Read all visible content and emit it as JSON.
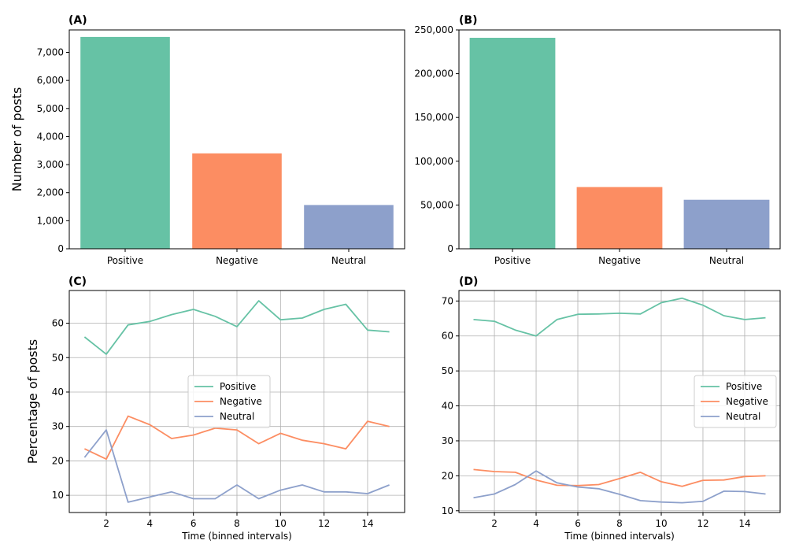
{
  "figure": {
    "ylabel_counts": "Number of posts",
    "ylabel_percent": "Percentage of posts"
  },
  "colors": {
    "Positive": "#66c2a5",
    "Negative": "#fc8d62",
    "Neutral": "#8da0cb",
    "grid": "#b0b0b0",
    "axis": "#000000"
  },
  "chart_data": [
    {
      "panel": "(A)",
      "type": "bar",
      "categories": [
        "Positive",
        "Negative",
        "Neutral"
      ],
      "values": [
        7550,
        3400,
        1560
      ],
      "ylabel": "Number of posts",
      "xlabel": "",
      "ylim": [
        0,
        7800
      ],
      "yticks": [
        0,
        1000,
        2000,
        3000,
        4000,
        5000,
        6000,
        7000
      ],
      "ytick_labels": [
        "0",
        "1,000",
        "2,000",
        "3,000",
        "4,000",
        "5,000",
        "6,000",
        "7,000"
      ],
      "grid": false
    },
    {
      "panel": "(B)",
      "type": "bar",
      "categories": [
        "Positive",
        "Negative",
        "Neutral"
      ],
      "values": [
        241000,
        70500,
        56000
      ],
      "ylabel": "",
      "xlabel": "",
      "ylim": [
        0,
        250000
      ],
      "yticks": [
        0,
        50000,
        100000,
        150000,
        200000,
        250000
      ],
      "ytick_labels": [
        "0",
        "50,000",
        "100,000",
        "150,000",
        "200,000",
        "250,000"
      ],
      "grid": false
    },
    {
      "panel": "(C)",
      "type": "line",
      "x": [
        1,
        2,
        3,
        4,
        5,
        6,
        7,
        8,
        9,
        10,
        11,
        12,
        13,
        14,
        15
      ],
      "series": [
        {
          "name": "Positive",
          "values": [
            56,
            51,
            59.5,
            60.5,
            62.5,
            64,
            62,
            59,
            66.5,
            61,
            61.5,
            64,
            65.5,
            58,
            57.5
          ]
        },
        {
          "name": "Negative",
          "values": [
            23.5,
            20.5,
            33,
            30.5,
            26.5,
            27.5,
            29.5,
            29,
            25,
            28,
            26,
            25,
            23.5,
            31.5,
            30
          ]
        },
        {
          "name": "Neutral",
          "values": [
            21,
            29,
            8,
            9.5,
            11,
            9,
            9,
            13,
            9,
            11.5,
            13,
            11,
            11,
            10.5,
            13
          ]
        }
      ],
      "xlabel": "Time (binned intervals)",
      "ylabel": "Percentage of posts",
      "xlim": [
        0.3,
        15.7
      ],
      "ylim": [
        5,
        69.5
      ],
      "xticks": [
        2,
        4,
        6,
        8,
        10,
        12,
        14
      ],
      "yticks": [
        10,
        20,
        30,
        40,
        50,
        60
      ],
      "grid": true,
      "legend": "center"
    },
    {
      "panel": "(D)",
      "type": "line",
      "x": [
        1,
        2,
        3,
        4,
        5,
        6,
        7,
        8,
        9,
        10,
        11,
        12,
        13,
        14,
        15
      ],
      "series": [
        {
          "name": "Positive",
          "values": [
            64.7,
            64.2,
            61.7,
            60,
            64.7,
            66.2,
            66.3,
            66.5,
            66.3,
            69.5,
            70.8,
            68.8,
            65.8,
            64.7,
            65.2
          ]
        },
        {
          "name": "Negative",
          "values": [
            21.8,
            21.2,
            21,
            18.8,
            17.3,
            17.2,
            17.5,
            19.2,
            21,
            18.3,
            17,
            18.7,
            18.8,
            19.8,
            20
          ]
        },
        {
          "name": "Neutral",
          "values": [
            13.7,
            14.8,
            17.5,
            21.4,
            18,
            16.8,
            16.3,
            14.7,
            12.9,
            12.5,
            12.3,
            12.7,
            15.6,
            15.5,
            14.8
          ]
        }
      ],
      "xlabel": "Time (binned intervals)",
      "ylabel": "",
      "xlim": [
        0.3,
        15.7
      ],
      "ylim": [
        9.5,
        73
      ],
      "xticks": [
        2,
        4,
        6,
        8,
        10,
        12,
        14
      ],
      "yticks": [
        10,
        20,
        30,
        40,
        50,
        60,
        70
      ],
      "grid": true,
      "legend": "center-right"
    }
  ]
}
